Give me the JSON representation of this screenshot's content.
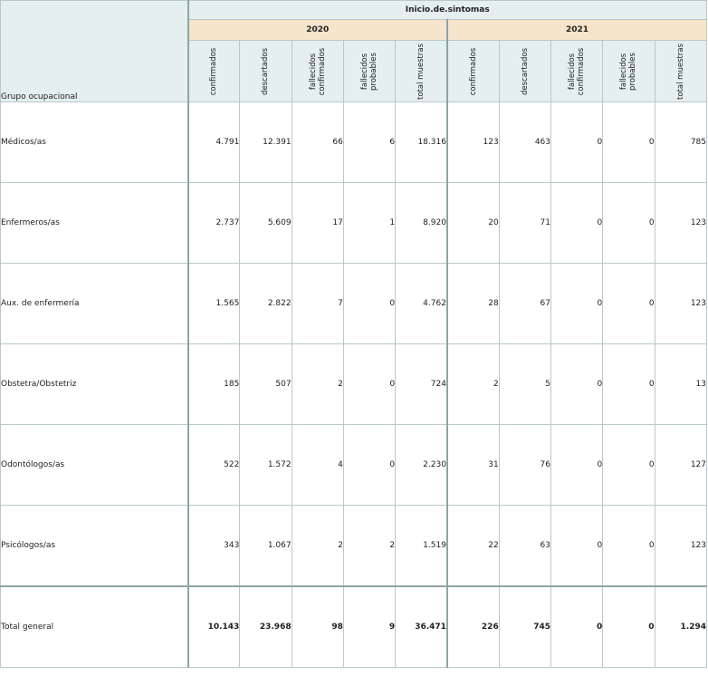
{
  "title": "Inicio.de.sintomas",
  "row_header": "Grupo ocupacional",
  "years": [
    "2020",
    "2021"
  ],
  "metrics": [
    "confirmados",
    "descartados",
    "fallecidos confirmados",
    "fallecidos probables",
    "total muestras"
  ],
  "rows": [
    {
      "label": "Médicos/as",
      "values": [
        "4.791",
        "12.391",
        "66",
        "6",
        "18.316",
        "123",
        "463",
        "0",
        "0",
        "785"
      ]
    },
    {
      "label": "Enfermeros/as",
      "values": [
        "2.737",
        "5.609",
        "17",
        "1",
        "8.920",
        "20",
        "71",
        "0",
        "0",
        "123"
      ]
    },
    {
      "label": "Aux. de enfermería",
      "values": [
        "1.565",
        "2.822",
        "7",
        "0",
        "4.762",
        "28",
        "67",
        "0",
        "0",
        "123"
      ]
    },
    {
      "label": "Obstetra/Obstetriz",
      "values": [
        "185",
        "507",
        "2",
        "0",
        "724",
        "2",
        "5",
        "0",
        "0",
        "13"
      ]
    },
    {
      "label": "Odontólogos/as",
      "values": [
        "522",
        "1.572",
        "4",
        "0",
        "2.230",
        "31",
        "76",
        "0",
        "0",
        "127"
      ]
    },
    {
      "label": "Psicólogos/as",
      "values": [
        "343",
        "1.067",
        "2",
        "2",
        "1.519",
        "22",
        "63",
        "0",
        "0",
        "123"
      ]
    }
  ],
  "total": {
    "label": "Total general",
    "values": [
      "10.143",
      "23.968",
      "98",
      "9",
      "36.471",
      "226",
      "745",
      "0",
      "0",
      "1.294"
    ]
  },
  "colors": {
    "header_mint": "#e4efee",
    "header_peach": "#f6e4cc",
    "grid": "#b9c9c9"
  }
}
